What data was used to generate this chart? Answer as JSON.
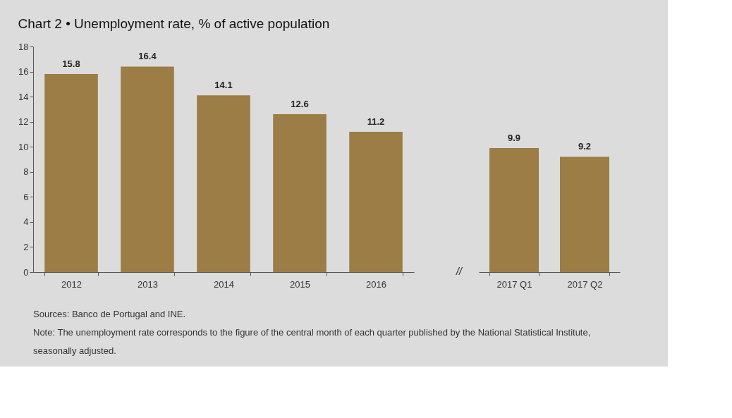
{
  "chart_data": [
    {
      "type": "bar",
      "title": "Chart 2 • Unemployment rate, % of active population",
      "categories": [
        "2012",
        "2013",
        "2014",
        "2015",
        "2016"
      ],
      "values": [
        15.8,
        16.4,
        14.1,
        12.6,
        11.2
      ],
      "color": "#9b7d45",
      "ylim": [
        0,
        18
      ],
      "yticks": [
        0,
        2,
        4,
        6,
        8,
        10,
        12,
        14,
        16,
        18
      ],
      "data_labels": true,
      "annotations": [
        "Sources: Banco de Portugal and INE.",
        "Note: The unemployment rate corresponds to the figure of the central month of each quarter published by the National Statistical Institute, seasonally adjusted."
      ]
    },
    {
      "type": "bar",
      "categories": [
        "2017 Q1",
        "2017 Q2"
      ],
      "values": [
        9.9,
        9.2
      ],
      "color": "#9b7d45",
      "data_labels": true,
      "tick_labels": "x",
      "annotations": [
        "//"
      ]
    }
  ]
}
